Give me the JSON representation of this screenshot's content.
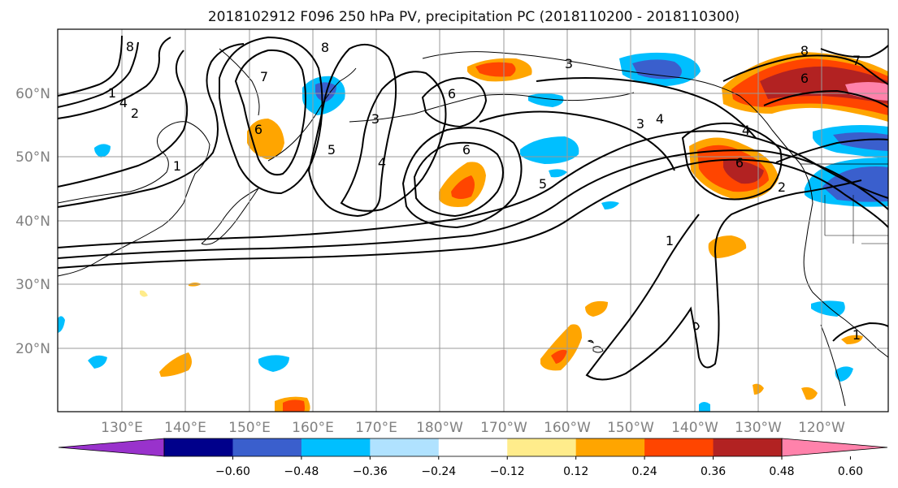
{
  "title": "2018102912 F096 250 hPa PV, precipitation PC (2018110200 - 2018110300)",
  "map": {
    "lat_labels": [
      "60°N",
      "50°N",
      "40°N",
      "30°N",
      "20°N"
    ],
    "lon_labels": [
      "130°E",
      "140°E",
      "150°E",
      "160°E",
      "170°E",
      "180°W",
      "170°W",
      "160°W",
      "150°W",
      "140°W",
      "130°W",
      "120°W"
    ],
    "pv_contour_labels": [
      "1",
      "2",
      "3",
      "4",
      "5",
      "6",
      "7",
      "8"
    ]
  },
  "colorbar": {
    "colors": [
      "#9932cc",
      "#00008b",
      "#3a5fcd",
      "#00bfff",
      "#b0e2ff",
      "#ffffff",
      "#ffec8b",
      "#ffa500",
      "#ff4500",
      "#b22222",
      "#ff82ab"
    ],
    "tick_labels": [
      "-0.60",
      "-0.48",
      "-0.36",
      "-0.24",
      "-0.12",
      "0.12",
      "0.24",
      "0.36",
      "0.48",
      "0.60"
    ]
  }
}
